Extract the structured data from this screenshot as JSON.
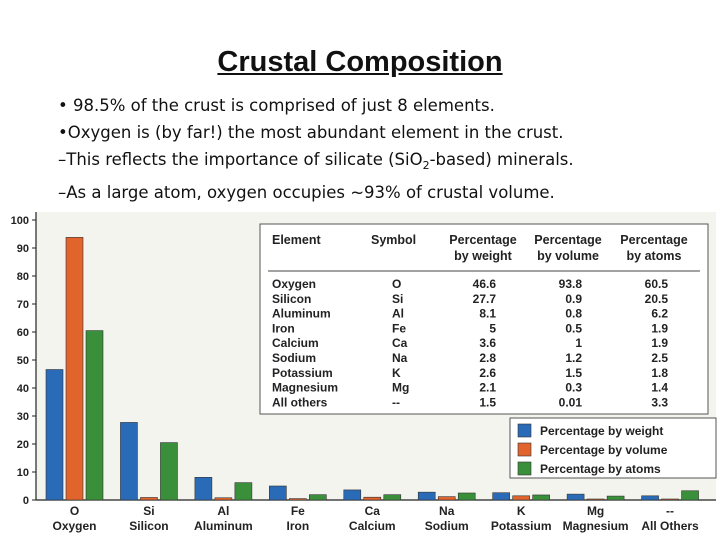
{
  "slide": {
    "title": "Crustal Composition",
    "bullets": [
      {
        "text": "• 98.5% of the crust is comprised of just 8 elements."
      },
      {
        "text": "•Oxygen is (by far!) the most abundant element in the crust."
      },
      {
        "pre": "–This reflects the importance of silicate (SiO",
        "sub": "2",
        "post": "-based) minerals."
      },
      {
        "text": "–As a large atom, oxygen occupies ~93% of crustal volume."
      }
    ]
  },
  "chart_data": {
    "type": "bar",
    "categories": [
      {
        "symbol": "O",
        "name": "Oxygen"
      },
      {
        "symbol": "Si",
        "name": "Silicon"
      },
      {
        "symbol": "Al",
        "name": "Aluminum"
      },
      {
        "symbol": "Fe",
        "name": "Iron"
      },
      {
        "symbol": "Ca",
        "name": "Calcium"
      },
      {
        "symbol": "Na",
        "name": "Sodium"
      },
      {
        "symbol": "K",
        "name": "Potassium"
      },
      {
        "symbol": "Mg",
        "name": "Magnesium"
      },
      {
        "symbol": "--",
        "name": "All Others"
      }
    ],
    "series": [
      {
        "name": "Percentage by weight",
        "color": "#2a6bb8",
        "values": [
          46.6,
          27.7,
          8.1,
          5,
          3.6,
          2.8,
          2.6,
          2.1,
          1.5
        ]
      },
      {
        "name": "Percentage by volume",
        "color": "#e0642c",
        "values": [
          93.8,
          0.9,
          0.8,
          0.5,
          1,
          1.2,
          1.5,
          0.3,
          0.01
        ]
      },
      {
        "name": "Percentage by atoms",
        "color": "#3a8f3a",
        "values": [
          60.5,
          20.5,
          6.2,
          1.9,
          1.9,
          2.5,
          1.8,
          1.4,
          3.3
        ]
      }
    ],
    "ylim": [
      0,
      100
    ],
    "yticks": [
      0,
      10,
      20,
      30,
      40,
      50,
      60,
      70,
      80,
      90,
      100
    ],
    "grid": false,
    "legend_position": "bottom-right",
    "table": {
      "headers": [
        {
          "line1": "Element",
          "line2": ""
        },
        {
          "line1": "Symbol",
          "line2": ""
        },
        {
          "line1": "Percentage",
          "line2": "by weight"
        },
        {
          "line1": "Percentage",
          "line2": "by volume"
        },
        {
          "line1": "Percentage",
          "line2": "by atoms"
        }
      ],
      "rows": [
        [
          "Oxygen",
          "O",
          "46.6",
          "93.8",
          "60.5"
        ],
        [
          "Silicon",
          "Si",
          "27.7",
          "0.9",
          "20.5"
        ],
        [
          "Aluminum",
          "Al",
          "8.1",
          "0.8",
          "6.2"
        ],
        [
          "Iron",
          "Fe",
          "5",
          "0.5",
          "1.9"
        ],
        [
          "Calcium",
          "Ca",
          "3.6",
          "1",
          "1.9"
        ],
        [
          "Sodium",
          "Na",
          "2.8",
          "1.2",
          "2.5"
        ],
        [
          "Potassium",
          "K",
          "2.6",
          "1.5",
          "1.8"
        ],
        [
          "Magnesium",
          "Mg",
          "2.1",
          "0.3",
          "1.4"
        ],
        [
          "All others",
          "--",
          "1.5",
          "0.01",
          "3.3"
        ]
      ]
    }
  }
}
